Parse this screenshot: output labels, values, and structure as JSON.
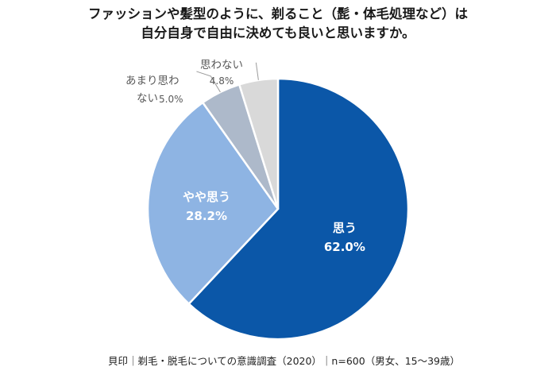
{
  "title_lines": [
    "ファッションや髪型のように、剃ること（髭・体毛処理など）は",
    "自分自身で自由に決めても良いと思いますか。"
  ],
  "source": "貝印｜剃毛・脱毛についての意識調査（2020）｜n=600（男女、15〜39歳）",
  "chart_data": {
    "type": "pie",
    "start_angle_deg": 0,
    "direction": "clockwise",
    "slices": [
      {
        "label": "思う",
        "value": 62.0,
        "value_label": "62.0%",
        "color": "#0b57a8",
        "label_color": "#ffffff"
      },
      {
        "label": "やや思う",
        "value": 28.2,
        "value_label": "28.2%",
        "color": "#8eb4e3",
        "label_color": "#ffffff"
      },
      {
        "label_lines": [
          "あまり思わ",
          "ない"
        ],
        "value": 5.0,
        "value_label": "5.0%",
        "color": "#adb9ca",
        "label_color": "#595959"
      },
      {
        "label": "思わない",
        "value": 4.8,
        "value_label": "4.8%",
        "color": "#d9d9d9",
        "label_color": "#595959"
      }
    ]
  }
}
